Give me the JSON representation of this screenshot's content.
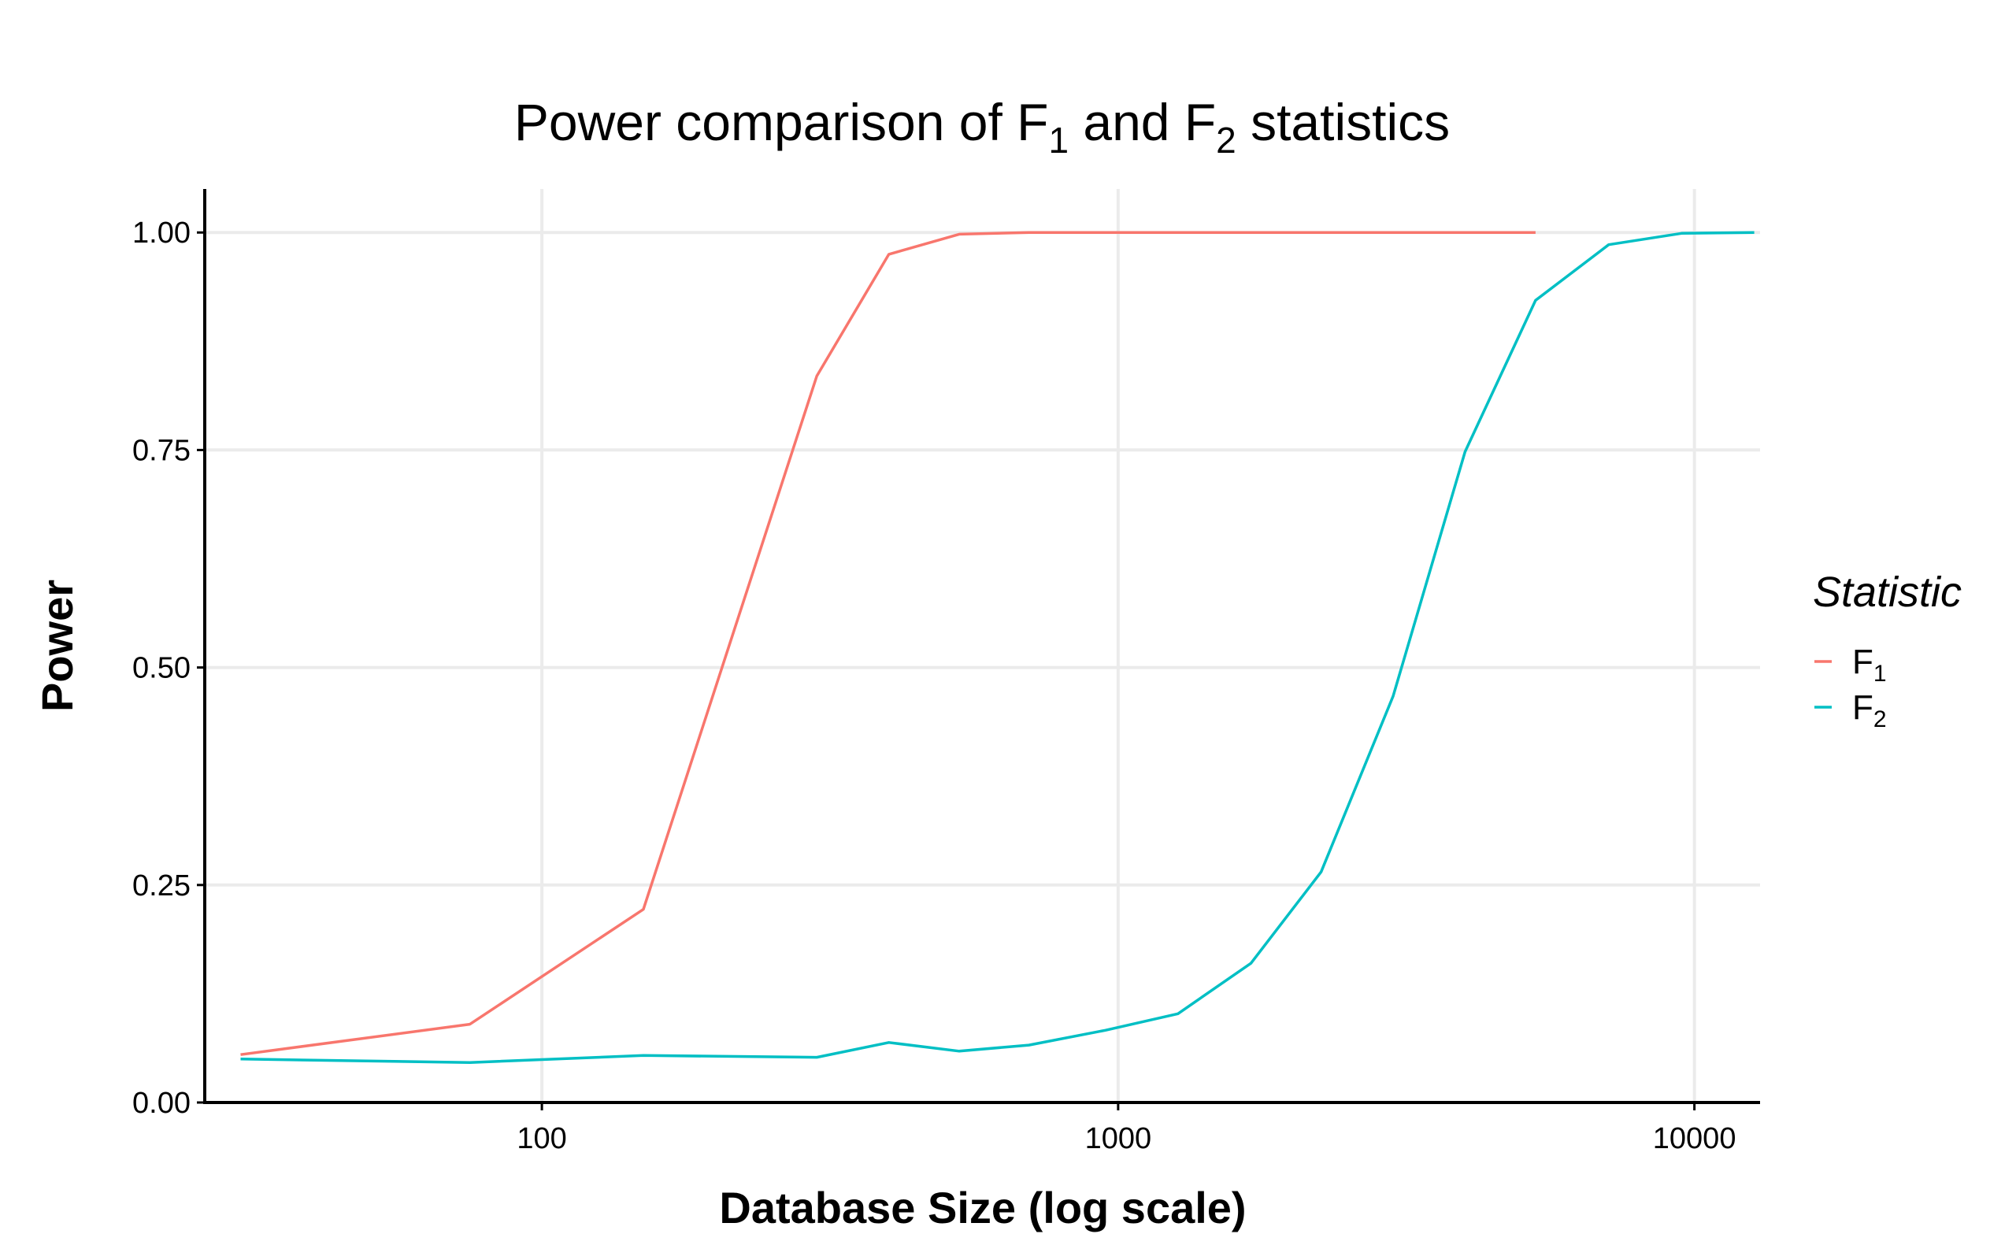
{
  "chart_data": {
    "type": "line",
    "title": {
      "prefix": "Power comparison of  F",
      "sub1": "1",
      "middle": " and F",
      "sub2": "2",
      "suffix": " statistics"
    },
    "xlabel": "Database Size (log scale)",
    "ylabel": "Power",
    "x_scale": "log10",
    "xlim": [
      26,
      13000
    ],
    "ylim": [
      0,
      1.05
    ],
    "x_ticks": [
      {
        "value": 100,
        "label": "100"
      },
      {
        "value": 1000,
        "label": "1000"
      },
      {
        "value": 10000,
        "label": "10000"
      }
    ],
    "y_ticks": [
      {
        "value": 0,
        "label": "0.00"
      },
      {
        "value": 0.25,
        "label": "0.25"
      },
      {
        "value": 0.5,
        "label": "0.50"
      },
      {
        "value": 0.75,
        "label": "0.75"
      },
      {
        "value": 1,
        "label": "1.00"
      }
    ],
    "grid": true,
    "legend": {
      "title": "Statistic",
      "position": "right"
    },
    "series": [
      {
        "name": "F",
        "sub": "1",
        "color": "#F8766D",
        "points": [
          {
            "x": 30,
            "y": 0.055
          },
          {
            "x": 75,
            "y": 0.09
          },
          {
            "x": 150,
            "y": 0.222
          },
          {
            "x": 300,
            "y": 0.835
          },
          {
            "x": 400,
            "y": 0.975
          },
          {
            "x": 530,
            "y": 0.998
          },
          {
            "x": 700,
            "y": 1.0
          },
          {
            "x": 5300,
            "y": 1.0
          }
        ]
      },
      {
        "name": "F",
        "sub": "2",
        "color": "#00BFC4",
        "points": [
          {
            "x": 30,
            "y": 0.05
          },
          {
            "x": 75,
            "y": 0.046
          },
          {
            "x": 150,
            "y": 0.054
          },
          {
            "x": 300,
            "y": 0.052
          },
          {
            "x": 400,
            "y": 0.069
          },
          {
            "x": 530,
            "y": 0.059
          },
          {
            "x": 700,
            "y": 0.066
          },
          {
            "x": 950,
            "y": 0.083
          },
          {
            "x": 1270,
            "y": 0.102
          },
          {
            "x": 1700,
            "y": 0.16
          },
          {
            "x": 2250,
            "y": 0.265
          },
          {
            "x": 3000,
            "y": 0.467
          },
          {
            "x": 4000,
            "y": 0.748
          },
          {
            "x": 5300,
            "y": 0.922
          },
          {
            "x": 7100,
            "y": 0.986
          },
          {
            "x": 9500,
            "y": 0.999
          },
          {
            "x": 12700,
            "y": 1.0
          }
        ]
      }
    ]
  }
}
